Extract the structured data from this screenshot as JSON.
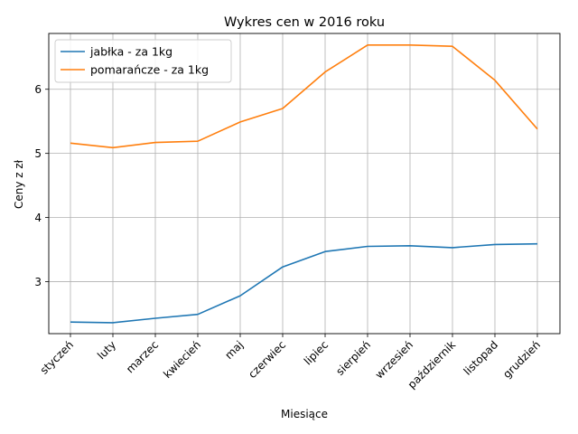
{
  "chart_data": {
    "type": "line",
    "title": "Wykres cen w 2016 roku",
    "xlabel": "Miesiące",
    "ylabel": "Ceny z zł",
    "categories": [
      "styczeń",
      "luty",
      "marzec",
      "kwiecień",
      "maj",
      "czerwiec",
      "lipiec",
      "sierpień",
      "wrzesień",
      "październik",
      "listopad",
      "grudzień"
    ],
    "series": [
      {
        "name": "jabłka - za 1kg",
        "color": "#1f77b4",
        "values": [
          2.37,
          2.36,
          2.43,
          2.49,
          2.78,
          3.23,
          3.47,
          3.55,
          3.56,
          3.53,
          3.58,
          3.59
        ]
      },
      {
        "name": "pomarańcze - za 1kg",
        "color": "#ff7f0e",
        "values": [
          5.16,
          5.09,
          5.17,
          5.19,
          5.49,
          5.7,
          6.27,
          6.69,
          6.69,
          6.67,
          6.14,
          5.38
        ]
      }
    ],
    "yticks": [
      3,
      4,
      5,
      6
    ],
    "ylim": [
      2.19,
      6.87
    ],
    "grid": true,
    "legend_position": "upper-left"
  }
}
